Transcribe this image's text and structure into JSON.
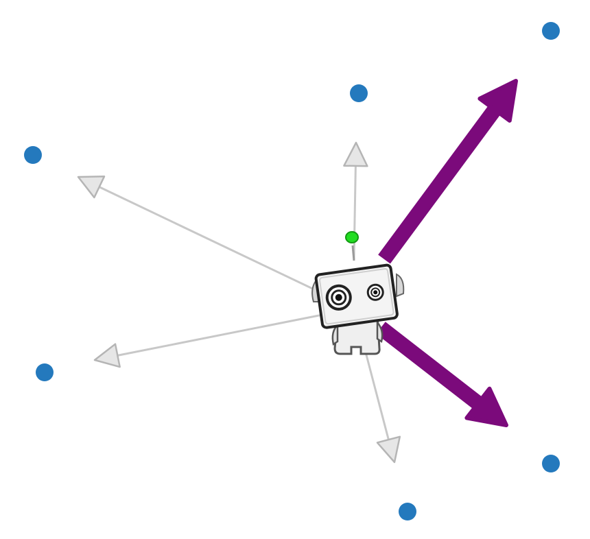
{
  "diagram": {
    "robot": {
      "icon": "robot-icon"
    },
    "antenna": {
      "icon": "antenna-indicator-icon",
      "color": "#22dd22"
    },
    "colors": {
      "target": "#2479bd",
      "strong_arrow": "#7b0a7b",
      "weak_arrow": "#c8c8c8"
    },
    "targets": [
      {
        "id": "target-top-right"
      },
      {
        "id": "target-top-center"
      },
      {
        "id": "target-upper-left"
      },
      {
        "id": "target-lower-left"
      },
      {
        "id": "target-bottom-right"
      },
      {
        "id": "target-bottom-center"
      }
    ],
    "arrows": [
      {
        "id": "arrow-top-right",
        "strength": "strong"
      },
      {
        "id": "arrow-bottom-right",
        "strength": "strong"
      },
      {
        "id": "arrow-up",
        "strength": "weak"
      },
      {
        "id": "arrow-upper-left",
        "strength": "weak"
      },
      {
        "id": "arrow-lower-left",
        "strength": "weak"
      },
      {
        "id": "arrow-down",
        "strength": "weak"
      }
    ]
  }
}
